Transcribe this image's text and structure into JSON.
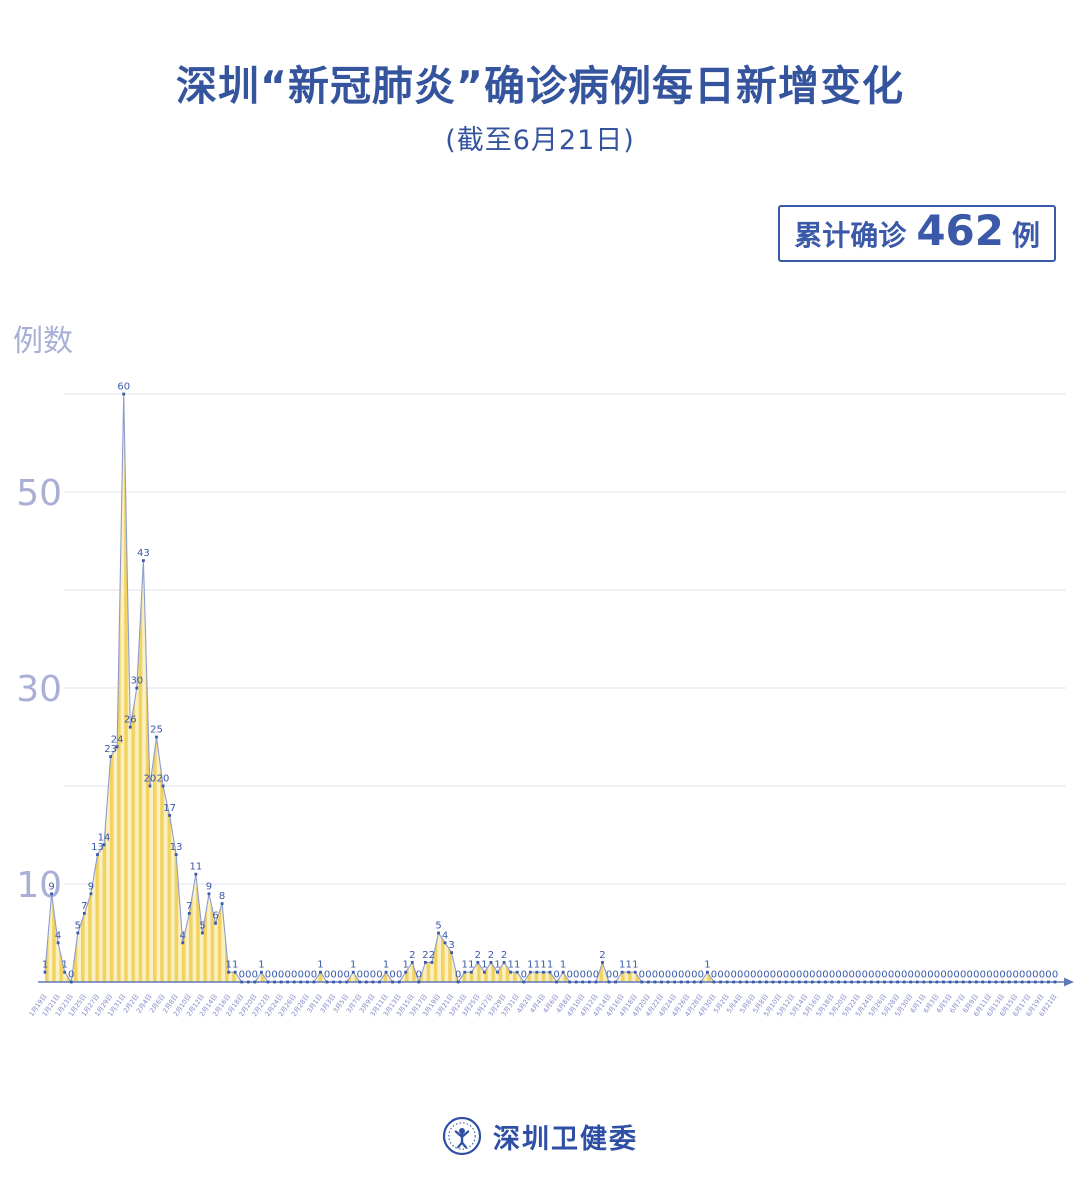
{
  "header": {
    "title": "深圳“新冠肺炎”确诊病例每日新增变化",
    "subtitle": "(截至6月21日)"
  },
  "badge": {
    "prefix": "累计确诊",
    "value": "462",
    "suffix": "例"
  },
  "footer": {
    "org_name": "深圳卫健委",
    "logo": "shenzhen-health-commission-emblem"
  },
  "chart_data": {
    "type": "area",
    "title": "深圳新冠肺炎确诊病例每日新增",
    "ylabel": "例数",
    "xlabel": "",
    "ylim": [
      0,
      62
    ],
    "gridlines": [
      10,
      20,
      30,
      40,
      50,
      60
    ],
    "y_ticks_labeled": [
      10,
      30,
      50
    ],
    "x_label_every": 2,
    "legend": "none",
    "colors": {
      "area_dark": "#F2D35F",
      "area_light": "#FAF0C4",
      "line": "#8E9CCD",
      "marker": "#3A59A8",
      "grid": "#E7E8F0",
      "axis": "#6078BC",
      "axis_text": "#A9AFD5",
      "x_text": "#8087C6"
    },
    "dates": [
      "1月19日",
      "1月20日",
      "1月21日",
      "1月22日",
      "1月23日",
      "1月24日",
      "1月25日",
      "1月26日",
      "1月27日",
      "1月28日",
      "1月29日",
      "1月30日",
      "1月31日",
      "2月1日",
      "2月2日",
      "2月3日",
      "2月4日",
      "2月5日",
      "2月6日",
      "2月7日",
      "2月8日",
      "2月9日",
      "2月10日",
      "2月11日",
      "2月12日",
      "2月13日",
      "2月14日",
      "2月15日",
      "2月16日",
      "2月17日",
      "2月18日",
      "2月19日",
      "2月20日",
      "2月21日",
      "2月22日",
      "2月23日",
      "2月24日",
      "2月25日",
      "2月26日",
      "2月27日",
      "2月28日",
      "2月29日",
      "3月1日",
      "3月2日",
      "3月3日",
      "3月4日",
      "3月5日",
      "3月6日",
      "3月7日",
      "3月8日",
      "3月9日",
      "3月10日",
      "3月11日",
      "3月12日",
      "3月13日",
      "3月14日",
      "3月15日",
      "3月16日",
      "3月17日",
      "3月18日",
      "3月19日",
      "3月20日",
      "3月21日",
      "3月22日",
      "3月23日",
      "3月24日",
      "3月25日",
      "3月26日",
      "3月27日",
      "3月28日",
      "3月29日",
      "3月30日",
      "3月31日",
      "4月1日",
      "4月2日",
      "4月3日",
      "4月4日",
      "4月5日",
      "4月6日",
      "4月7日",
      "4月8日",
      "4月9日",
      "4月10日",
      "4月11日",
      "4月12日",
      "4月13日",
      "4月14日",
      "4月15日",
      "4月16日",
      "4月17日",
      "4月18日",
      "4月19日",
      "4月20日",
      "4月21日",
      "4月22日",
      "4月23日",
      "4月24日",
      "4月25日",
      "4月26日",
      "4月27日",
      "4月28日",
      "4月29日",
      "4月30日",
      "5月1日",
      "5月2日",
      "5月3日",
      "5月4日",
      "5月5日",
      "5月6日",
      "5月7日",
      "5月8日",
      "5月9日",
      "5月10日",
      "5月11日",
      "5月12日",
      "5月13日",
      "5月14日",
      "5月15日",
      "5月16日",
      "5月17日",
      "5月18日",
      "5月19日",
      "5月20日",
      "5月21日",
      "5月22日",
      "5月23日",
      "5月24日",
      "5月25日",
      "5月26日",
      "5月27日",
      "5月28日",
      "5月29日",
      "5月30日",
      "5月31日",
      "6月1日",
      "6月2日",
      "6月3日",
      "6月4日",
      "6月5日",
      "6月6日",
      "6月7日",
      "6月8日",
      "6月9日",
      "6月10日",
      "6月11日",
      "6月12日",
      "6月13日",
      "6月14日",
      "6月15日",
      "6月16日",
      "6月17日",
      "6月18日",
      "6月19日",
      "6月20日",
      "6月21日"
    ],
    "values": [
      1,
      9,
      4,
      1,
      0,
      5,
      7,
      9,
      13,
      14,
      23,
      24,
      60,
      26,
      30,
      43,
      20,
      25,
      20,
      17,
      13,
      4,
      7,
      11,
      5,
      9,
      6,
      8,
      1,
      1,
      0,
      0,
      0,
      1,
      0,
      0,
      0,
      0,
      0,
      0,
      0,
      0,
      1,
      0,
      0,
      0,
      0,
      1,
      0,
      0,
      0,
      0,
      1,
      0,
      0,
      1,
      2,
      0,
      2,
      2,
      5,
      4,
      3,
      0,
      1,
      1,
      2,
      1,
      2,
      1,
      2,
      1,
      1,
      0,
      1,
      1,
      1,
      1,
      0,
      1,
      0,
      0,
      0,
      0,
      0,
      2,
      0,
      0,
      1,
      1,
      1,
      0,
      0,
      0,
      0,
      0,
      0,
      0,
      0,
      0,
      0,
      1,
      0,
      0,
      0,
      0,
      0,
      0,
      0,
      0,
      0,
      0,
      0,
      0,
      0,
      0,
      0,
      0,
      0,
      0,
      0,
      0,
      0,
      0,
      0,
      0,
      0,
      0,
      0,
      0,
      0,
      0,
      0,
      0,
      0,
      0,
      0,
      0,
      0,
      0,
      0,
      0,
      0,
      0,
      0,
      0,
      0,
      0,
      0,
      0,
      0,
      0,
      0,
      0,
      0
    ],
    "cumulative_total": 462
  }
}
